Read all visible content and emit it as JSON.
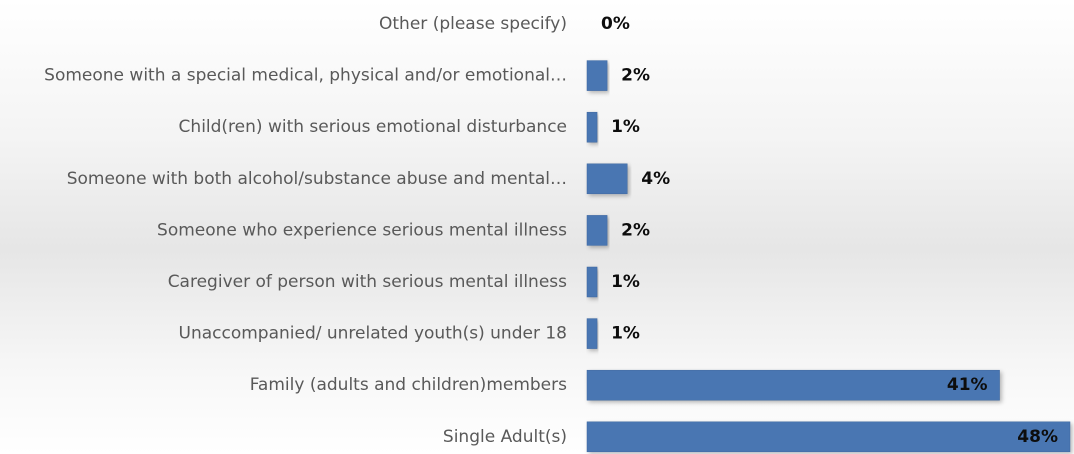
{
  "chart_data": {
    "type": "bar",
    "orientation": "horizontal",
    "categories": [
      "Other (please specify)",
      "Someone with a special medical, physical and/or emotional…",
      "Child(ren) with serious emotional disturbance",
      "Someone with both alcohol/substance abuse and mental…",
      "Someone who experience serious mental illness",
      "Caregiver of person with serious mental illness",
      "Unaccompanied/ unrelated youth(s) under 18",
      "Family (adults and children)members",
      "Single Adult(s)"
    ],
    "values": [
      0,
      2,
      1,
      4,
      2,
      1,
      1,
      41,
      48
    ],
    "value_labels": [
      "0%",
      "2%",
      "1%",
      "4%",
      "2%",
      "1%",
      "1%",
      "41%",
      "48%"
    ],
    "unit": "%",
    "xlim": [
      0,
      48
    ],
    "grid": false,
    "legend": "none",
    "colors": {
      "bar": "#4a76b2",
      "bar_edge": "#3d679f",
      "category_text": "#595959",
      "value_text": "#0d0d0d"
    }
  }
}
